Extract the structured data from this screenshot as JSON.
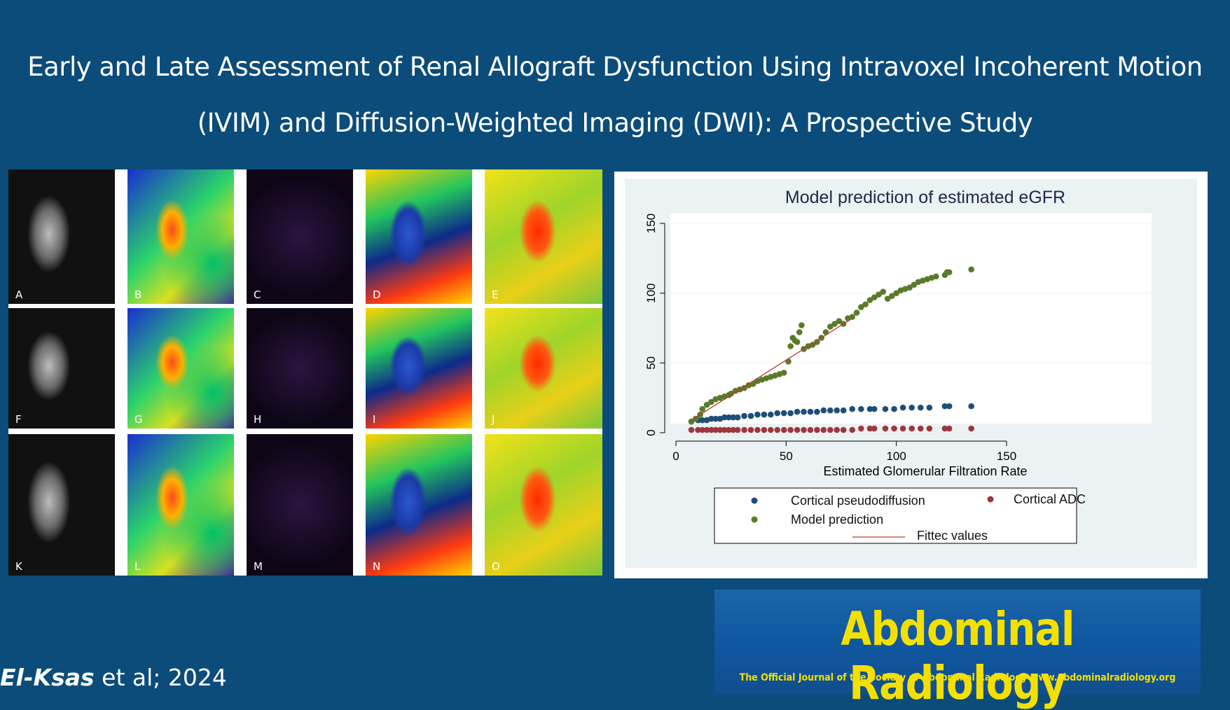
{
  "title": {
    "line1": "Early and Late Assessment of Renal Allograft Dysfunction Using Intravoxel Incoherent Motion",
    "line2": "(IVIM) and Diffusion-Weighted Imaging (DWI): A Prospective Study"
  },
  "mri_panels": [
    [
      "A",
      "B",
      "C",
      "D",
      "E"
    ],
    [
      "F",
      "G",
      "H",
      "I",
      "J"
    ],
    [
      "K",
      "L",
      "M",
      "N",
      "O"
    ]
  ],
  "chart_data": {
    "type": "scatter",
    "title": "Model prediction of estimated eGFR",
    "xlabel": "Estimated Glomerular Filtration Rate",
    "ylabel": "",
    "xlim": [
      0,
      150
    ],
    "ylim": [
      0,
      150
    ],
    "xticks": [
      0,
      50,
      100,
      150
    ],
    "yticks": [
      0,
      50,
      100,
      150
    ],
    "grid": true,
    "legend_position": "bottom",
    "series": [
      {
        "name": "Cortical pseudodiffusion",
        "type": "scatter",
        "color": "#1d4e79",
        "x": [
          7,
          10,
          12,
          14,
          16,
          18,
          20,
          22,
          24,
          26,
          28,
          31,
          34,
          37,
          40,
          43,
          46,
          49,
          52,
          55,
          58,
          61,
          64,
          67,
          70,
          73,
          76,
          80,
          84,
          88,
          90,
          95,
          99,
          103,
          107,
          111,
          115,
          122,
          124,
          134
        ],
        "y": [
          8,
          9,
          9,
          9,
          10,
          10,
          10,
          11,
          11,
          11,
          11,
          12,
          12,
          13,
          13,
          13,
          14,
          14,
          14,
          15,
          15,
          15,
          15,
          16,
          16,
          16,
          16,
          17,
          17,
          17,
          17,
          17,
          17,
          18,
          18,
          18,
          18,
          19,
          19,
          19
        ]
      },
      {
        "name": "Cortical ADC",
        "type": "scatter",
        "color": "#a0353d",
        "x": [
          7,
          10,
          12,
          14,
          16,
          18,
          20,
          22,
          24,
          26,
          28,
          31,
          34,
          37,
          40,
          43,
          46,
          49,
          52,
          55,
          58,
          61,
          64,
          67,
          70,
          73,
          76,
          80,
          84,
          88,
          90,
          95,
          99,
          103,
          107,
          111,
          115,
          122,
          124,
          134
        ],
        "y": [
          2,
          2,
          2,
          2,
          2,
          2,
          2,
          2,
          2,
          2,
          2,
          2,
          2,
          2,
          2,
          2,
          2,
          2,
          2,
          2,
          2,
          2,
          2,
          2,
          2,
          2,
          2,
          2,
          3,
          3,
          3,
          3,
          3,
          3,
          3,
          3,
          3,
          3,
          3,
          3
        ]
      },
      {
        "name": "Model prediction",
        "type": "scatter",
        "color": "#5a7a2a",
        "x": [
          7,
          9,
          11,
          12,
          14,
          16,
          18,
          20,
          22,
          24,
          25,
          27,
          29,
          31,
          33,
          35,
          37,
          39,
          41,
          43,
          45,
          47,
          49,
          51,
          52,
          53,
          54,
          55,
          56,
          57,
          58,
          60,
          62,
          64,
          66,
          68,
          70,
          72,
          74,
          76,
          78,
          80,
          82,
          84,
          86,
          88,
          90,
          92,
          94,
          96,
          98,
          100,
          102,
          104,
          106,
          108,
          110,
          112,
          114,
          116,
          118,
          122,
          123,
          124,
          134
        ],
        "y": [
          8,
          10,
          13,
          17,
          20,
          22,
          24,
          25,
          26,
          27,
          28,
          30,
          31,
          32,
          34,
          35,
          37,
          38,
          39,
          40,
          41,
          42,
          43,
          51,
          62,
          68,
          66,
          65,
          72,
          77,
          60,
          62,
          63,
          65,
          68,
          72,
          76,
          78,
          80,
          78,
          82,
          83,
          86,
          90,
          92,
          95,
          97,
          99,
          101,
          96,
          98,
          100,
          102,
          103,
          104,
          106,
          108,
          109,
          110,
          111,
          112,
          113,
          115,
          115,
          117
        ]
      },
      {
        "name": "Fittec values",
        "type": "line",
        "color": "#c0392b",
        "x": [
          7,
          80
        ],
        "y": [
          9,
          82
        ]
      }
    ]
  },
  "citation": {
    "author": "El-Ksas",
    "rest": " et al; 2024"
  },
  "journal": {
    "name": "Abdominal Radiology",
    "tagline": "The Official Journal of the Society of Abdominal Radiology www.abdominalradiology.org"
  }
}
